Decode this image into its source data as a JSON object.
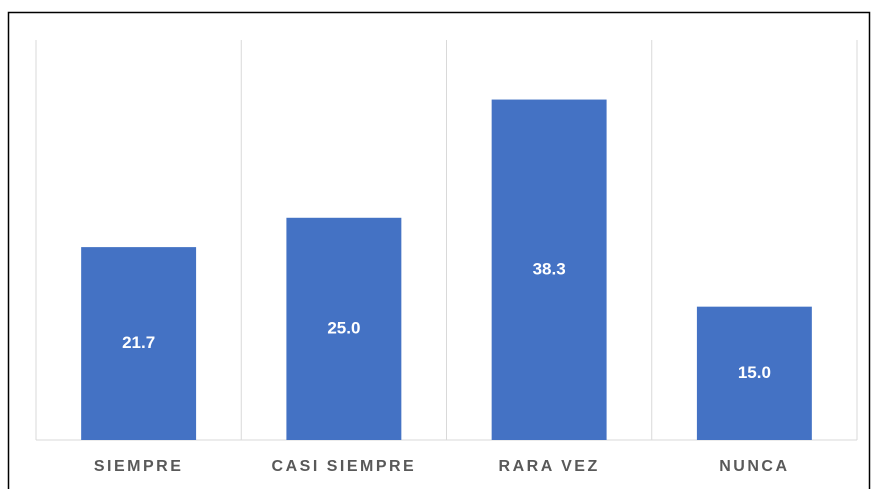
{
  "chart_data": {
    "type": "bar",
    "categories": [
      "SIEMPRE",
      "CASI SIEMPRE",
      "RARA VEZ",
      "NUNCA"
    ],
    "values": [
      21.7,
      25.0,
      38.3,
      15.0
    ],
    "value_labels": [
      "21.7",
      "25.0",
      "38.3",
      "15.0"
    ],
    "color": "#4472c4",
    "ylim": [
      0,
      45
    ]
  }
}
